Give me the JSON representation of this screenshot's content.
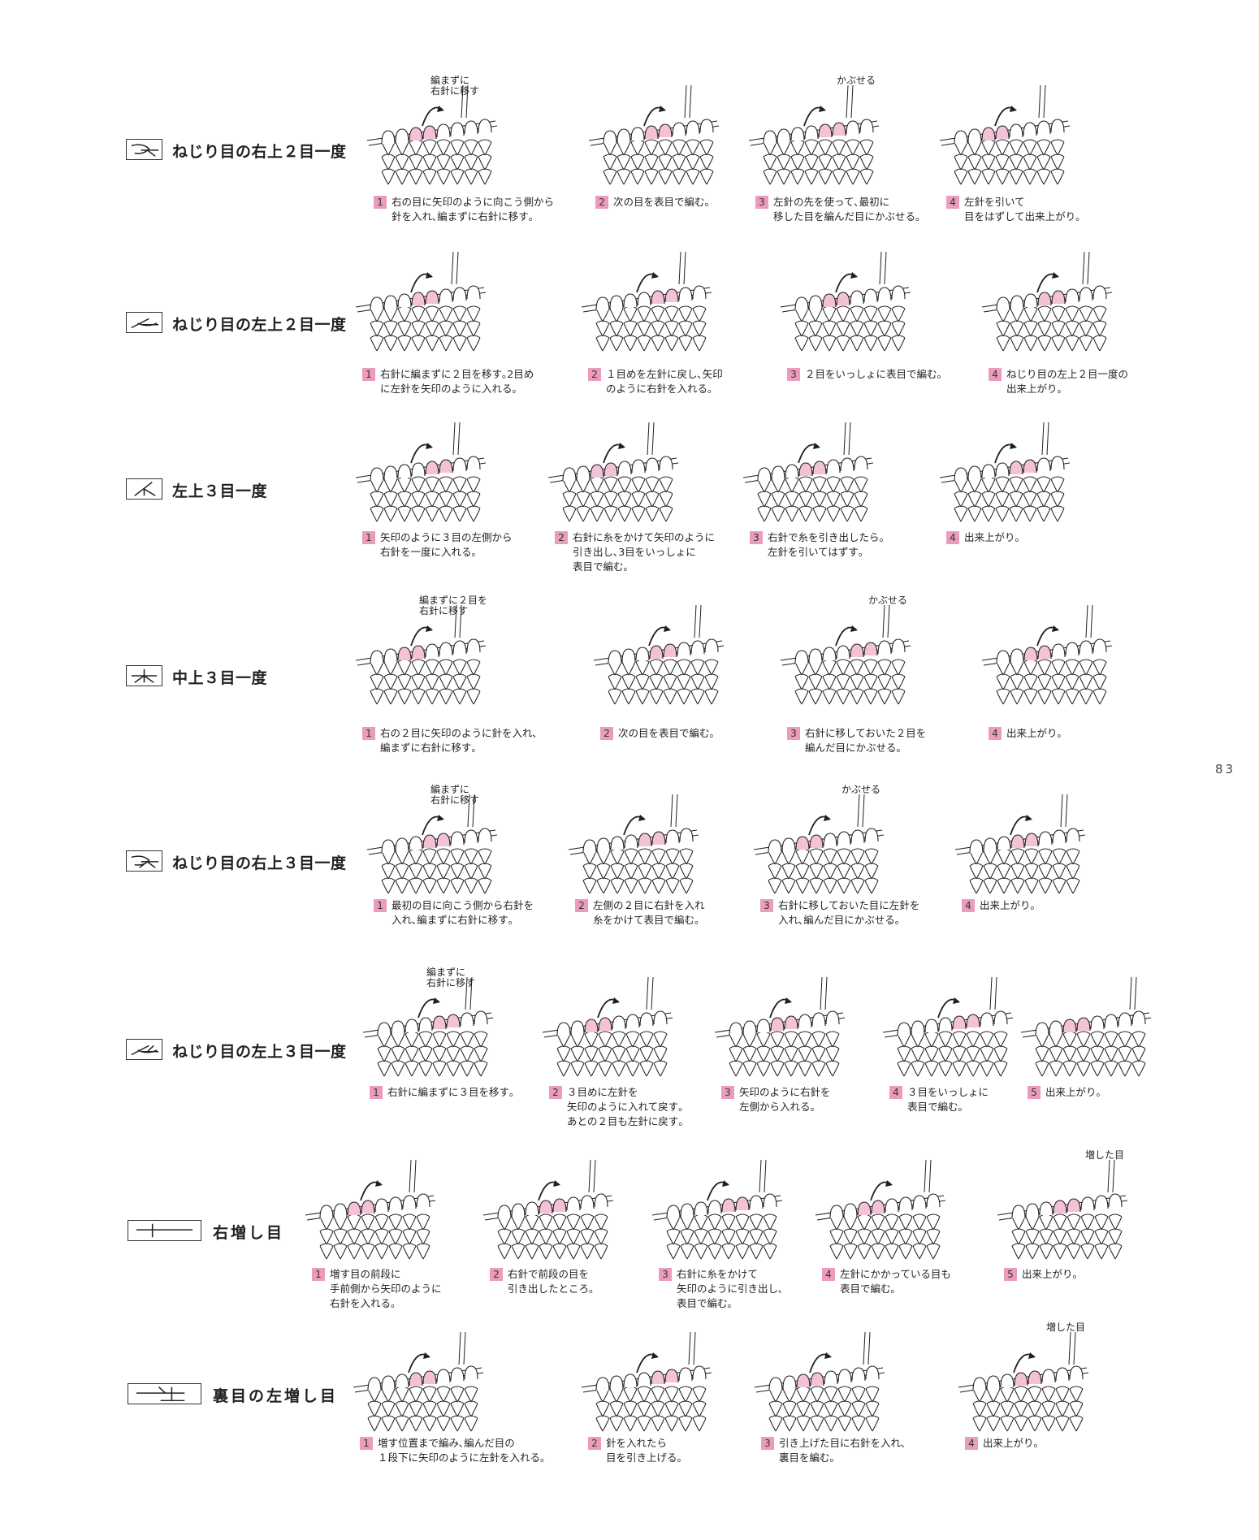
{
  "page_number": "83",
  "colors": {
    "accent_pink": "#eb9cbd",
    "stitch_fill": "#f4c2d6",
    "line": "#231f20"
  },
  "sections": [
    {
      "title": "ねじり目の右上２目一度",
      "symbol": "twisted-right-2-together",
      "steps": [
        {
          "n": "1",
          "text": "右の目に矢印のように向こう側から\n針を入れ､編まずに右針に移す｡",
          "note": "編まずに\n右針に移す"
        },
        {
          "n": "2",
          "text": "次の目を表目で編む｡"
        },
        {
          "n": "3",
          "text": "左針の先を使って､最初に\n移した目を編んだ目にかぶせる｡",
          "note": "かぶせる"
        },
        {
          "n": "4",
          "text": "左針を引いて\n目をはずして出来上がり｡"
        }
      ]
    },
    {
      "title": "ねじり目の左上２目一度",
      "symbol": "twisted-left-2-together",
      "steps": [
        {
          "n": "1",
          "text": "右針に編まずに２目を移す｡2目め\nに左針を矢印のように入れる｡"
        },
        {
          "n": "2",
          "text": "１目めを左針に戻し､矢印\nのように右針を入れる｡"
        },
        {
          "n": "3",
          "text": "２目をいっしょに表目で編む｡"
        },
        {
          "n": "4",
          "text": "ねじり目の左上２目一度の\n出来上がり｡"
        }
      ]
    },
    {
      "title": "左上３目一度",
      "symbol": "left-3-together",
      "steps": [
        {
          "n": "1",
          "text": "矢印のように３目の左側から\n右針を一度に入れる｡"
        },
        {
          "n": "2",
          "text": "右針に糸をかけて矢印のように\n引き出し､3目をいっしょに\n表目で編む｡"
        },
        {
          "n": "3",
          "text": "右針で糸を引き出したら｡\n左針を引いてはずす｡"
        },
        {
          "n": "4",
          "text": "出来上がり｡"
        }
      ]
    },
    {
      "title": "中上３目一度",
      "symbol": "center-3-together",
      "steps": [
        {
          "n": "1",
          "text": "右の２目に矢印のように針を入れ､\n編まずに右針に移す｡",
          "note": "編まずに２目を\n右針に移す"
        },
        {
          "n": "2",
          "text": "次の目を表目で編む｡"
        },
        {
          "n": "3",
          "text": "右針に移しておいた２目を\n編んだ目にかぶせる｡",
          "note": "かぶせる"
        },
        {
          "n": "4",
          "text": "出来上がり｡"
        }
      ]
    },
    {
      "title": "ねじり目の右上３目一度",
      "symbol": "twisted-right-3-together",
      "steps": [
        {
          "n": "1",
          "text": "最初の目に向こう側から右針を\n入れ､編まずに右針に移す｡",
          "note": "編まずに\n右針に移す"
        },
        {
          "n": "2",
          "text": "左側の２目に右針を入れ\n糸をかけて表目で編む｡"
        },
        {
          "n": "3",
          "text": "右針に移しておいた目に左針を\n入れ､編んだ目にかぶせる｡",
          "note": "かぶせる"
        },
        {
          "n": "4",
          "text": "出来上がり｡"
        }
      ]
    },
    {
      "title": "ねじり目の左上３目一度",
      "symbol": "twisted-left-3-together",
      "steps": [
        {
          "n": "1",
          "text": "右針に編まずに３目を移す｡",
          "note": "編まずに\n右針に移す"
        },
        {
          "n": "2",
          "text": "３目めに左針を\n矢印のように入れて戻す｡\nあとの２目も左針に戻す｡"
        },
        {
          "n": "3",
          "text": "矢印のように右針を\n左側から入れる｡"
        },
        {
          "n": "4",
          "text": "３目をいっしょに\n表目で編む｡"
        },
        {
          "n": "5",
          "text": "出来上がり｡"
        }
      ]
    },
    {
      "title": "右増し目",
      "symbol": "right-increase",
      "steps": [
        {
          "n": "1",
          "text": "増す目の前段に\n手前側から矢印のように\n右針を入れる｡"
        },
        {
          "n": "2",
          "text": "右針で前段の目を\n引き出したところ｡"
        },
        {
          "n": "3",
          "text": "右針に糸をかけて\n矢印のように引き出し､\n表目で編む｡"
        },
        {
          "n": "4",
          "text": "左針にかかっている目も\n表目で編む｡"
        },
        {
          "n": "5",
          "text": "出来上がり｡",
          "note": "増した目"
        }
      ]
    },
    {
      "title": "裏目の左増し目",
      "symbol": "purl-left-increase",
      "steps": [
        {
          "n": "1",
          "text": "増す位置まで編み､編んだ目の\n１段下に矢印のように左針を入れる｡"
        },
        {
          "n": "2",
          "text": "針を入れたら\n目を引き上げる｡"
        },
        {
          "n": "3",
          "text": "引き上げた目に右針を入れ､\n裏目を編む｡"
        },
        {
          "n": "4",
          "text": "出来上がり｡",
          "note": "増した目"
        }
      ]
    }
  ]
}
